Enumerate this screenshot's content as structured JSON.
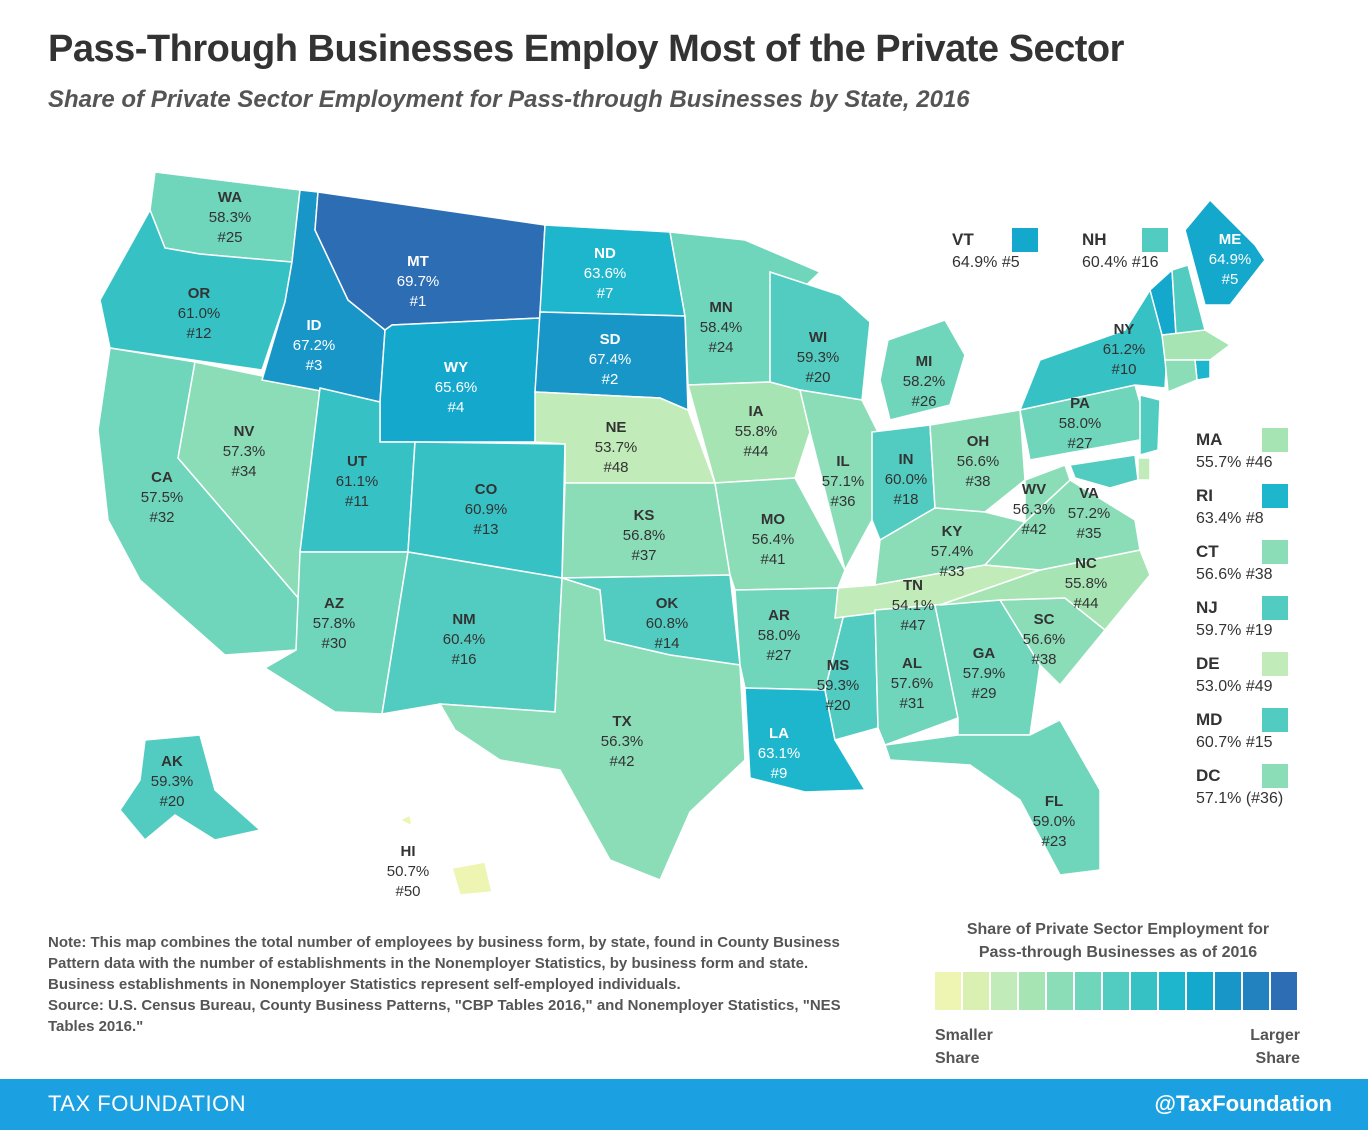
{
  "header": {
    "title": "Pass-Through Businesses Employ Most of the Private Sector",
    "subtitle": "Share of Private Sector Employment for Pass-through Businesses by State, 2016"
  },
  "colors": {
    "scale": [
      "#eef5b3",
      "#d9f0b2",
      "#c1ebb8",
      "#a6e4b4",
      "#8bddb8",
      "#6fd5bb",
      "#52ccc0",
      "#36c2c5",
      "#1db6cd",
      "#13a8cc",
      "#1896c7",
      "#2282bf",
      "#2d6db3"
    ],
    "footer": "#1ba1e2"
  },
  "states": [
    {
      "abbr": "WA",
      "value": "58.3%",
      "rank": "#25"
    },
    {
      "abbr": "OR",
      "value": "61.0%",
      "rank": "#12"
    },
    {
      "abbr": "CA",
      "value": "57.5%",
      "rank": "#32"
    },
    {
      "abbr": "NV",
      "value": "57.3%",
      "rank": "#34"
    },
    {
      "abbr": "ID",
      "value": "67.2%",
      "rank": "#3"
    },
    {
      "abbr": "MT",
      "value": "69.7%",
      "rank": "#1"
    },
    {
      "abbr": "WY",
      "value": "65.6%",
      "rank": "#4"
    },
    {
      "abbr": "UT",
      "value": "61.1%",
      "rank": "#11"
    },
    {
      "abbr": "AZ",
      "value": "57.8%",
      "rank": "#30"
    },
    {
      "abbr": "CO",
      "value": "60.9%",
      "rank": "#13"
    },
    {
      "abbr": "NM",
      "value": "60.4%",
      "rank": "#16"
    },
    {
      "abbr": "ND",
      "value": "63.6%",
      "rank": "#7"
    },
    {
      "abbr": "SD",
      "value": "67.4%",
      "rank": "#2"
    },
    {
      "abbr": "NE",
      "value": "53.7%",
      "rank": "#48"
    },
    {
      "abbr": "KS",
      "value": "56.8%",
      "rank": "#37"
    },
    {
      "abbr": "OK",
      "value": "60.8%",
      "rank": "#14"
    },
    {
      "abbr": "TX",
      "value": "56.3%",
      "rank": "#42"
    },
    {
      "abbr": "MN",
      "value": "58.4%",
      "rank": "#24"
    },
    {
      "abbr": "IA",
      "value": "55.8%",
      "rank": "#44"
    },
    {
      "abbr": "MO",
      "value": "56.4%",
      "rank": "#41"
    },
    {
      "abbr": "AR",
      "value": "58.0%",
      "rank": "#27"
    },
    {
      "abbr": "LA",
      "value": "63.1%",
      "rank": "#9"
    },
    {
      "abbr": "WI",
      "value": "59.3%",
      "rank": "#20"
    },
    {
      "abbr": "IL",
      "value": "57.1%",
      "rank": "#36"
    },
    {
      "abbr": "MS",
      "value": "59.3%",
      "rank": "#20"
    },
    {
      "abbr": "MI",
      "value": "58.2%",
      "rank": "#26"
    },
    {
      "abbr": "IN",
      "value": "60.0%",
      "rank": "#18"
    },
    {
      "abbr": "OH",
      "value": "56.6%",
      "rank": "#38"
    },
    {
      "abbr": "KY",
      "value": "57.4%",
      "rank": "#33"
    },
    {
      "abbr": "TN",
      "value": "54.1%",
      "rank": "#47"
    },
    {
      "abbr": "AL",
      "value": "57.6%",
      "rank": "#31"
    },
    {
      "abbr": "GA",
      "value": "57.9%",
      "rank": "#29"
    },
    {
      "abbr": "FL",
      "value": "59.0%",
      "rank": "#23"
    },
    {
      "abbr": "SC",
      "value": "56.6%",
      "rank": "#38"
    },
    {
      "abbr": "NC",
      "value": "55.8%",
      "rank": "#44"
    },
    {
      "abbr": "VA",
      "value": "57.2%",
      "rank": "#35"
    },
    {
      "abbr": "WV",
      "value": "56.3%",
      "rank": "#42"
    },
    {
      "abbr": "PA",
      "value": "58.0%",
      "rank": "#27"
    },
    {
      "abbr": "NY",
      "value": "61.2%",
      "rank": "#10"
    },
    {
      "abbr": "ME",
      "value": "64.9%",
      "rank": "#5"
    },
    {
      "abbr": "AK",
      "value": "59.3%",
      "rank": "#20"
    },
    {
      "abbr": "HI",
      "value": "50.7%",
      "rank": "#50"
    }
  ],
  "small_states": [
    {
      "abbr": "VT",
      "text": "64.9% #5"
    },
    {
      "abbr": "NH",
      "text": "60.4% #16"
    },
    {
      "abbr": "MA",
      "text": "55.7% #46"
    },
    {
      "abbr": "RI",
      "text": "63.4% #8"
    },
    {
      "abbr": "CT",
      "text": "56.6% #38"
    },
    {
      "abbr": "NJ",
      "text": "59.7% #19"
    },
    {
      "abbr": "DE",
      "text": "53.0% #49"
    },
    {
      "abbr": "MD",
      "text": "60.7% #15"
    },
    {
      "abbr": "DC",
      "text": "57.1% (#36)"
    }
  ],
  "legend": {
    "title_line1": "Share of Private Sector Employment for",
    "title_line2": "Pass-through Businesses as of 2016",
    "low_line1": "Smaller",
    "low_line2": "Share",
    "high_line1": "Larger",
    "high_line2": "Share"
  },
  "note": {
    "text": "Note: This map combines the total number of employees by business form, by state, found in County Business Pattern data with the number of establishments in the Nonemployer Statistics, by business form and state. Business establishments in Nonemployer Statistics represent self-employed individuals.",
    "source": "Source: U.S. Census Bureau, County Business Patterns, \"CBP Tables 2016,\" and Nonemployer Statistics, \"NES Tables 2016.\""
  },
  "footer": {
    "brand": "TAX FOUNDATION",
    "handle": "@TaxFoundation"
  }
}
